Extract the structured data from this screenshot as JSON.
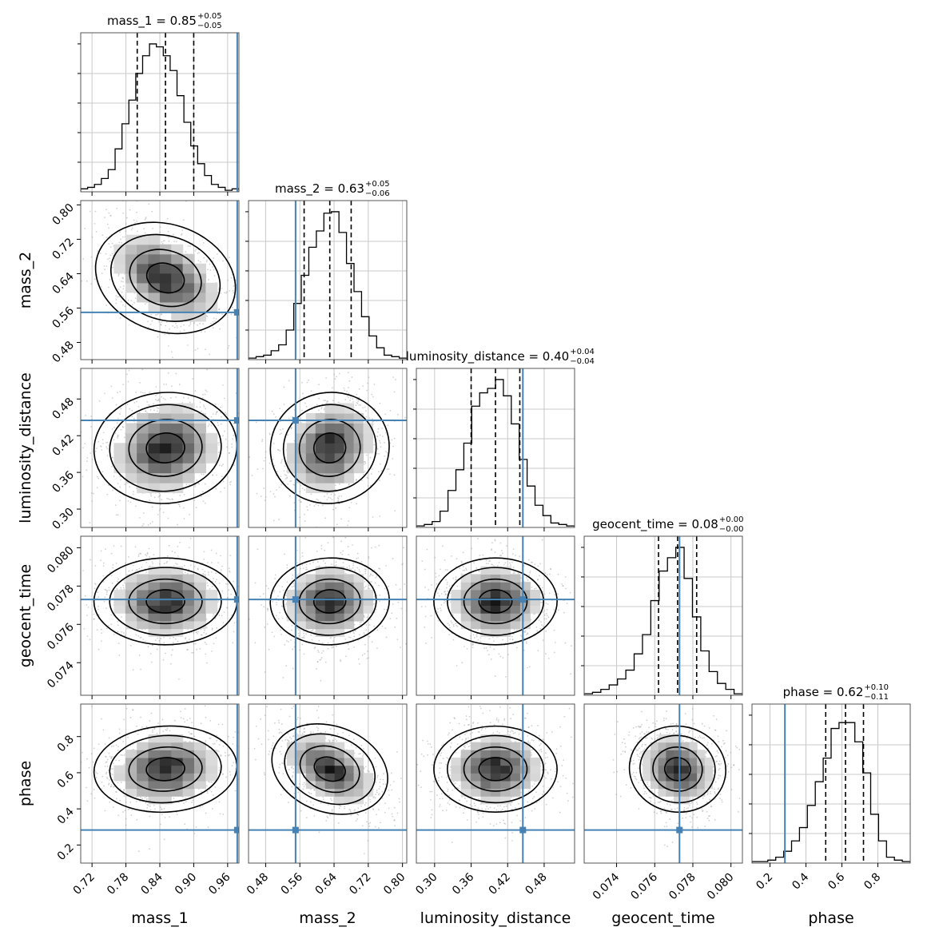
{
  "chart_data": {
    "type": "corner",
    "truth_color": "#4682b4",
    "parameters": [
      {
        "name": "mass_1",
        "range": [
          0.7,
          0.98
        ],
        "ticks": [
          "0.72",
          "0.78",
          "0.84",
          "0.90",
          "0.96"
        ],
        "truth": 0.977,
        "title": "mass_1 = 0.85",
        "median": 0.85,
        "plus": "+0.05",
        "minus": "−0.05"
      },
      {
        "name": "mass_2",
        "range": [
          0.44,
          0.81
        ],
        "ticks": [
          "0.48",
          "0.56",
          "0.64",
          "0.72",
          "0.80"
        ],
        "truth": 0.55,
        "title": "mass_2 = 0.63",
        "median": 0.63,
        "plus": "+0.05",
        "minus": "−0.06"
      },
      {
        "name": "luminosity_distance",
        "range": [
          0.27,
          0.53
        ],
        "ticks": [
          "0.30",
          "0.36",
          "0.42",
          "0.48"
        ],
        "truth": 0.445,
        "title": "luminosity_distance = 0.40",
        "median": 0.4,
        "plus": "+0.04",
        "minus": "−0.04"
      },
      {
        "name": "geocent_time",
        "range": [
          0.0723,
          0.0806
        ],
        "ticks": [
          "0.074",
          "0.076",
          "0.078",
          "0.080"
        ],
        "truth": 0.0773,
        "title": "geocent_time = 0.08",
        "median": 0.0773,
        "plus": "+0.00",
        "minus": "−0.00"
      },
      {
        "name": "phase",
        "range": [
          0.1,
          0.98
        ],
        "ticks": [
          "0.2",
          "0.4",
          "0.6",
          "0.8"
        ],
        "truth": 0.283,
        "title": "phase = 0.62",
        "median": 0.62,
        "plus": "+0.10",
        "minus": "−0.11"
      }
    ],
    "quantiles": [
      [
        0.8,
        0.85,
        0.9
      ],
      [
        0.57,
        0.63,
        0.68
      ],
      [
        0.36,
        0.4,
        0.44
      ],
      [
        0.0762,
        0.0772,
        0.0782
      ],
      [
        0.51,
        0.62,
        0.72
      ]
    ],
    "histograms": [
      [
        0.02,
        0.03,
        0.05,
        0.09,
        0.15,
        0.29,
        0.46,
        0.62,
        0.8,
        0.92,
        1.0,
        0.98,
        0.92,
        0.82,
        0.65,
        0.47,
        0.31,
        0.19,
        0.11,
        0.05,
        0.03,
        0.01,
        0.02
      ],
      [
        0.01,
        0.02,
        0.03,
        0.06,
        0.1,
        0.2,
        0.38,
        0.57,
        0.76,
        0.87,
        0.99,
        1.0,
        0.86,
        0.65,
        0.46,
        0.29,
        0.16,
        0.08,
        0.03,
        0.02,
        0.01
      ],
      [
        0.01,
        0.02,
        0.04,
        0.11,
        0.25,
        0.39,
        0.57,
        0.82,
        0.91,
        0.94,
        1.0,
        0.89,
        0.7,
        0.46,
        0.28,
        0.15,
        0.08,
        0.03,
        0.02,
        0.01
      ],
      [
        0.01,
        0.02,
        0.04,
        0.07,
        0.11,
        0.17,
        0.28,
        0.41,
        0.64,
        0.84,
        0.93,
        1.0,
        0.79,
        0.53,
        0.3,
        0.16,
        0.08,
        0.04,
        0.01
      ],
      [
        0.01,
        0.01,
        0.02,
        0.04,
        0.08,
        0.15,
        0.24,
        0.39,
        0.55,
        0.71,
        0.91,
        0.95,
        0.95,
        0.82,
        0.61,
        0.33,
        0.15,
        0.04,
        0.02,
        0.01
      ]
    ],
    "grid": true
  }
}
